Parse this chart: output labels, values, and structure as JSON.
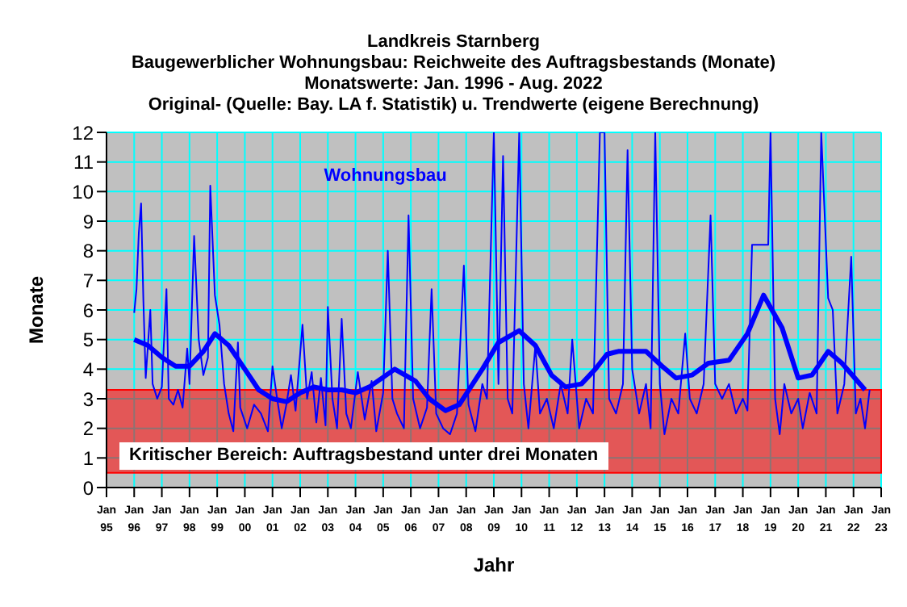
{
  "chart_data": {
    "type": "line",
    "title": "Landkreis Starnberg",
    "subtitle": "Baugewerblicher Wohnungsbau:  Reichweite  des Auftragsbestands (Monate)\nMonatswerte: Jan. 1996 - Aug. 2022\nOriginal- (Quelle: Bay. LA f. Statistik) u. Trendwerte (eigene Berechnung)",
    "xlabel": "Jahr",
    "ylabel": "Monate",
    "xlim": [
      "1995-01",
      "2023-01"
    ],
    "xticks": [
      {
        "value": "1995-01",
        "label": "Jan\n95"
      },
      {
        "value": "1996-01",
        "label": "Jan\n96"
      },
      {
        "value": "1997-01",
        "label": "Jan\n97"
      },
      {
        "value": "1998-01",
        "label": "Jan\n98"
      },
      {
        "value": "1999-01",
        "label": "Jan\n99"
      },
      {
        "value": "2000-01",
        "label": "Jan\n00"
      },
      {
        "value": "2001-01",
        "label": "Jan\n01"
      },
      {
        "value": "2002-01",
        "label": "Jan\n02"
      },
      {
        "value": "2003-01",
        "label": "Jan\n03"
      },
      {
        "value": "2004-01",
        "label": "Jan\n04"
      },
      {
        "value": "2005-01",
        "label": "Jan\n05"
      },
      {
        "value": "2006-01",
        "label": "Jan\n06"
      },
      {
        "value": "2007-01",
        "label": "Jan\n07"
      },
      {
        "value": "2008-01",
        "label": "Jan\n08"
      },
      {
        "value": "2009-01",
        "label": "Jan\n09"
      },
      {
        "value": "2010-01",
        "label": "Jan\n10"
      },
      {
        "value": "2011-01",
        "label": "Jan\n11"
      },
      {
        "value": "2012-01",
        "label": "Jan\n12"
      },
      {
        "value": "2013-01",
        "label": "Jan\n13"
      },
      {
        "value": "2014-01",
        "label": "Jan\n14"
      },
      {
        "value": "2015-01",
        "label": "Jan\n15"
      },
      {
        "value": "2016-01",
        "label": "Jan\n16"
      },
      {
        "value": "2017-01",
        "label": "Jan\n17"
      },
      {
        "value": "2018-01",
        "label": "Jan\n18"
      },
      {
        "value": "2019-01",
        "label": "Jan\n19"
      },
      {
        "value": "2020-01",
        "label": "Jan\n20"
      },
      {
        "value": "2021-01",
        "label": "Jan\n21"
      },
      {
        "value": "2022-01",
        "label": "Jan\n22"
      },
      {
        "value": "2023-01",
        "label": "Jan\n23"
      }
    ],
    "ylim": [
      0,
      12
    ],
    "yticks": [
      0,
      1,
      2,
      3,
      4,
      5,
      6,
      7,
      8,
      9,
      10,
      11,
      12
    ],
    "grid": true,
    "marker": "none",
    "line_style": "solid",
    "bands": [
      {
        "axis": "y",
        "from": 0.5,
        "to": 3.3,
        "label": "Kritischer Bereich: Auftragsbestand unter drei Monaten",
        "color": "#ff0000"
      }
    ],
    "series": [
      {
        "name": "Wohnungsbau",
        "color": "#0000ff",
        "x": [
          "1996-01",
          "1996-02",
          "1996-03",
          "1996-04",
          "1996-05",
          "1996-06",
          "1996-08",
          "1996-09",
          "1996-11",
          "1997-01",
          "1997-03",
          "1997-04",
          "1997-06",
          "1997-08",
          "1997-10",
          "1997-12",
          "1998-01",
          "1998-03",
          "1998-05",
          "1998-07",
          "1998-09",
          "1998-10",
          "1998-12",
          "1999-02",
          "1999-04",
          "1999-06",
          "1999-08",
          "1999-10",
          "1999-11",
          "2000-02",
          "2000-05",
          "2000-08",
          "2000-11",
          "2001-01",
          "2001-03",
          "2001-05",
          "2001-07",
          "2001-09",
          "2001-11",
          "2002-02",
          "2002-04",
          "2002-06",
          "2002-08",
          "2002-10",
          "2002-12",
          "2003-01",
          "2003-03",
          "2003-05",
          "2003-07",
          "2003-09",
          "2003-11",
          "2004-02",
          "2004-05",
          "2004-08",
          "2004-10",
          "2005-01",
          "2005-03",
          "2005-05",
          "2005-07",
          "2005-10",
          "2005-12",
          "2006-02",
          "2006-05",
          "2006-08",
          "2006-10",
          "2006-12",
          "2007-03",
          "2007-06",
          "2007-09",
          "2007-12",
          "2008-02",
          "2008-05",
          "2008-08",
          "2008-10",
          "2009-01",
          "2009-03",
          "2009-05",
          "2009-07",
          "2009-09",
          "2009-12",
          "2010-02",
          "2010-04",
          "2010-07",
          "2010-09",
          "2010-12",
          "2011-03",
          "2011-06",
          "2011-09",
          "2011-11",
          "2012-02",
          "2012-05",
          "2012-08",
          "2012-11",
          "2013-01",
          "2013-03",
          "2013-06",
          "2013-09",
          "2013-11",
          "2014-01",
          "2014-04",
          "2014-07",
          "2014-09",
          "2014-11",
          "2015-01",
          "2015-03",
          "2015-06",
          "2015-09",
          "2015-12",
          "2016-02",
          "2016-05",
          "2016-08",
          "2016-11",
          "2017-01",
          "2017-04",
          "2017-07",
          "2017-10",
          "2018-01",
          "2018-03",
          "2018-05",
          "2018-12",
          "2019-01",
          "2019-03",
          "2019-05",
          "2019-07",
          "2019-10",
          "2020-01",
          "2020-03",
          "2020-06",
          "2020-09",
          "2020-11",
          "2021-02",
          "2021-04",
          "2021-06",
          "2021-09",
          "2021-12",
          "2022-02",
          "2022-04",
          "2022-06",
          "2022-08"
        ],
        "values": [
          5.9,
          6.7,
          8.6,
          9.6,
          6.3,
          3.7,
          6.0,
          3.5,
          3.0,
          3.4,
          6.7,
          3.0,
          2.8,
          3.3,
          2.7,
          4.7,
          3.5,
          8.5,
          5.0,
          3.8,
          4.4,
          10.2,
          6.5,
          5.5,
          3.5,
          2.5,
          1.9,
          4.9,
          2.7,
          2.0,
          2.8,
          2.5,
          1.9,
          4.1,
          3.0,
          2.0,
          2.8,
          3.8,
          2.6,
          5.5,
          3.0,
          3.9,
          2.2,
          3.7,
          2.1,
          6.1,
          3.0,
          2.0,
          5.7,
          2.5,
          2.0,
          3.9,
          2.3,
          3.6,
          1.9,
          3.2,
          8.0,
          3.0,
          2.5,
          2.0,
          9.2,
          3.0,
          2.0,
          2.7,
          6.7,
          2.5,
          2.0,
          1.8,
          2.5,
          7.5,
          2.8,
          1.9,
          3.5,
          3.0,
          12,
          3.5,
          11.2,
          3.0,
          2.5,
          12,
          3.5,
          2.0,
          4.8,
          2.5,
          3.0,
          2.0,
          3.5,
          2.5,
          5.0,
          2.0,
          3.0,
          2.5,
          12,
          12,
          3.0,
          2.5,
          3.5,
          11.4,
          4.0,
          2.5,
          3.5,
          2.0,
          12,
          3.5,
          1.8,
          3.0,
          2.5,
          5.2,
          3.0,
          2.5,
          3.5,
          9.2,
          3.5,
          3.0,
          3.5,
          2.5,
          3.0,
          2.6,
          8.2,
          8.2,
          12,
          3.0,
          1.8,
          3.5,
          2.5,
          3.0,
          2.0,
          3.2,
          2.5,
          12,
          6.4,
          6.0,
          2.5,
          3.5,
          7.8,
          2.5,
          3.0,
          2.0,
          3.3
        ]
      },
      {
        "color": "#0000ff",
        "x": [
          "1996-01",
          "1996-07",
          "1997-01",
          "1997-07",
          "1998-01",
          "1998-07",
          "1998-12",
          "1999-06",
          "2000-01",
          "2000-07",
          "2001-01",
          "2001-07",
          "2002-01",
          "2002-07",
          "2003-01",
          "2003-07",
          "2004-01",
          "2004-07",
          "2005-06",
          "2006-03",
          "2006-09",
          "2007-04",
          "2007-10",
          "2008-08",
          "2009-03",
          "2009-12",
          "2010-07",
          "2011-02",
          "2011-08",
          "2012-03",
          "2012-09",
          "2013-02",
          "2013-07",
          "2014-07",
          "2015-02",
          "2015-08",
          "2016-03",
          "2016-10",
          "2017-07",
          "2018-03",
          "2018-10",
          "2019-06",
          "2020-01",
          "2020-07",
          "2021-02",
          "2021-08",
          "2022-06"
        ],
        "values": [
          5.0,
          4.8,
          4.4,
          4.1,
          4.1,
          4.6,
          5.2,
          4.8,
          4.0,
          3.3,
          3.0,
          2.9,
          3.2,
          3.4,
          3.3,
          3.3,
          3.2,
          3.4,
          4.0,
          3.6,
          3.0,
          2.6,
          2.8,
          4.0,
          4.9,
          5.3,
          4.8,
          3.8,
          3.4,
          3.5,
          4.0,
          4.5,
          4.6,
          4.6,
          4.1,
          3.7,
          3.8,
          4.2,
          4.3,
          5.2,
          6.5,
          5.4,
          3.7,
          3.8,
          4.6,
          4.2,
          3.3
        ]
      }
    ]
  }
}
